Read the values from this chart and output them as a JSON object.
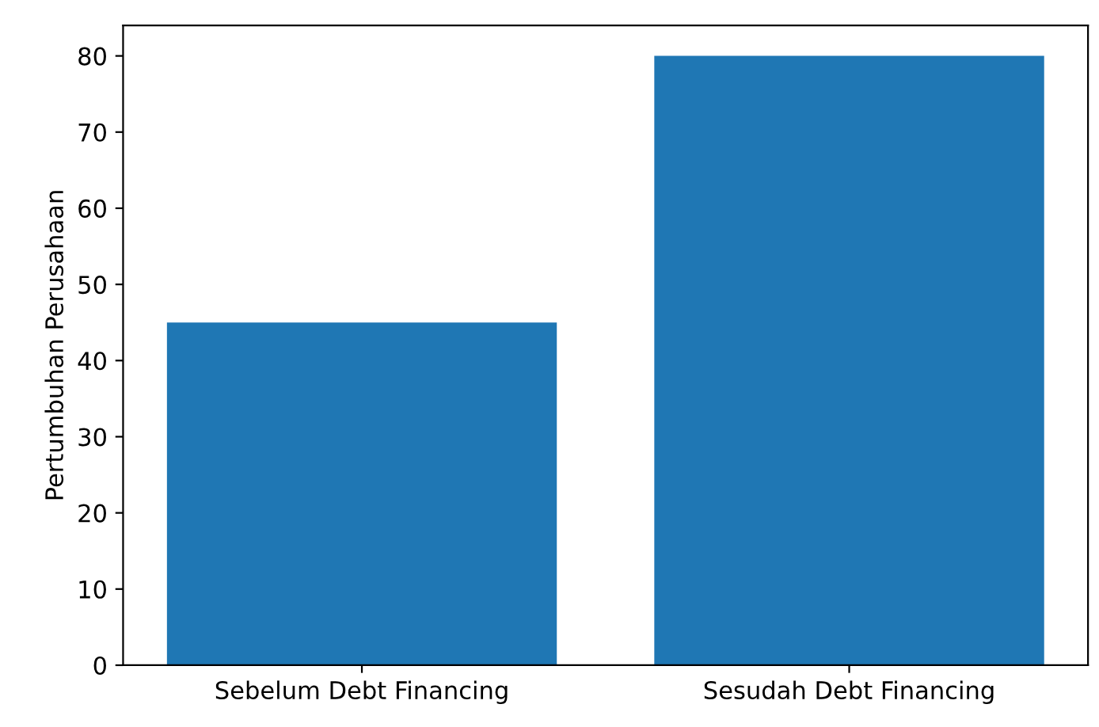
{
  "chart_data": {
    "type": "bar",
    "ylabel": "Pertumbuhan Perusahaan",
    "categories": [
      "Sebelum Debt Financing",
      "Sesudah Debt Financing"
    ],
    "values": [
      45,
      80
    ],
    "color": "#1f77b4",
    "ylim": [
      0,
      84
    ],
    "yticks": [
      0,
      10,
      20,
      30,
      40,
      50,
      60,
      70,
      80
    ],
    "grid": false
  }
}
